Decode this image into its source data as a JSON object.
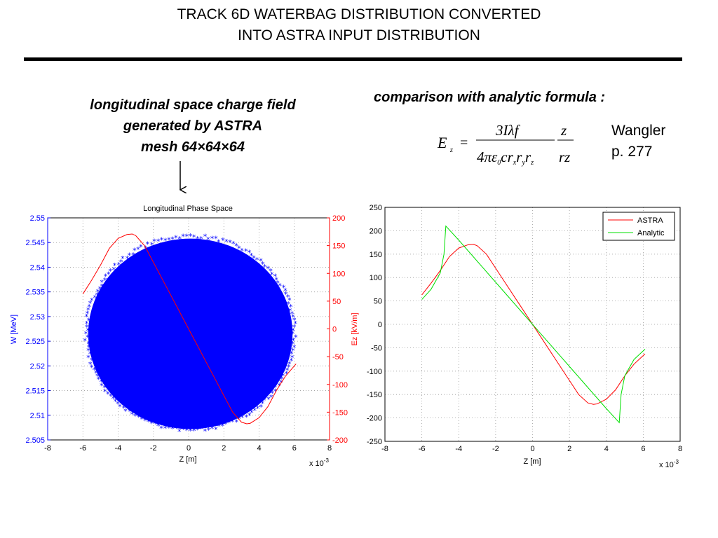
{
  "header": {
    "title_line_1": "TRACK 6D WATERBAG DISTRIBUTION CONVERTED",
    "title_line_2": "INTO ASTRA INPUT DISTRIBUTION"
  },
  "left_caption": {
    "line_1": "longitudinal space charge field",
    "line_2": "generated by ASTRA",
    "line_3": "mesh 64×64×64"
  },
  "right_caption": {
    "comparison": "comparison with analytic formula :",
    "reference_line_1": "Wangler",
    "reference_line_2": "p. 277"
  },
  "formula": {
    "lhs": "E",
    "lhs_sub": "z",
    "numerator": "3Iλf",
    "denominator": "4πε",
    "denominator_sub0": "0",
    "denominator_rest": "cr",
    "sub_x": "x",
    "sub_y": "y",
    "sub_z": "z",
    "frac2_num": "z",
    "frac2_den": "rz"
  },
  "colors": {
    "blue": "#0000ff",
    "red": "#ff0000",
    "green": "#00e000",
    "grid": "#9a9a9a"
  },
  "chart_data": [
    {
      "type": "scatter",
      "title": "Longitudinal Phase Space",
      "xlabel": "Z [m]",
      "x_multiplier": "x 10",
      "x_exponent": "-3",
      "xlim": [
        -8,
        8
      ],
      "xticks": [
        -8,
        -6,
        -4,
        -2,
        0,
        2,
        4,
        6,
        8
      ],
      "ylabel": "W [MeV]",
      "ylim": [
        2.505,
        2.55
      ],
      "yticks": [
        "2.505",
        "2.51",
        "2.515",
        "2.52",
        "2.525",
        "2.53",
        "2.535",
        "2.54",
        "2.545",
        "2.55"
      ],
      "y2label": "Ez [kV/m]",
      "y2lim": [
        -200,
        200
      ],
      "y2ticks": [
        -200,
        -150,
        -100,
        -50,
        0,
        50,
        100,
        150,
        200
      ],
      "grid": true,
      "scatter_region": {
        "center_z": 0.1,
        "center_w": 2.5265,
        "half_width_z": 5.8,
        "half_height_w": 0.0193
      },
      "series": [
        {
          "axis": "right",
          "color": "#ff0000",
          "x": [
            -6.0,
            -5.5,
            -5.0,
            -4.5,
            -4.0,
            -3.5,
            -3.2,
            -3.0,
            -2.5,
            -2.0,
            -1.5,
            -1.0,
            -0.5,
            0.0,
            0.5,
            1.0,
            1.5,
            2.0,
            2.5,
            3.0,
            3.3,
            3.5,
            4.0,
            4.5,
            5.0,
            5.5,
            6.1
          ],
          "y": [
            63,
            88,
            115,
            145,
            163,
            170,
            171,
            168,
            150,
            120,
            90,
            60,
            30,
            0,
            -30,
            -60,
            -90,
            -120,
            -150,
            -168,
            -171,
            -170,
            -160,
            -140,
            -110,
            -85,
            -63
          ]
        }
      ]
    },
    {
      "type": "line",
      "title": "",
      "xlabel": "Z [m]",
      "x_multiplier": "x 10",
      "x_exponent": "-3",
      "xlim": [
        -8,
        8
      ],
      "xticks": [
        -8,
        -6,
        -4,
        -2,
        0,
        2,
        4,
        6,
        8
      ],
      "ylabel": "",
      "ylim": [
        -250,
        250
      ],
      "yticks": [
        -250,
        -200,
        -150,
        -100,
        -50,
        0,
        50,
        100,
        150,
        200,
        250
      ],
      "grid": true,
      "legend": "top-right",
      "series": [
        {
          "name": "ASTRA",
          "color": "#ff0000",
          "x": [
            -6.0,
            -5.5,
            -5.0,
            -4.5,
            -4.0,
            -3.5,
            -3.2,
            -3.0,
            -2.5,
            -2.0,
            -1.5,
            -1.0,
            -0.5,
            0.0,
            0.5,
            1.0,
            1.5,
            2.0,
            2.5,
            3.0,
            3.3,
            3.5,
            4.0,
            4.5,
            5.0,
            5.5,
            6.1
          ],
          "y": [
            63,
            88,
            115,
            145,
            163,
            170,
            171,
            168,
            150,
            120,
            90,
            60,
            30,
            0,
            -30,
            -60,
            -90,
            -120,
            -150,
            -168,
            -171,
            -170,
            -160,
            -140,
            -110,
            -85,
            -63
          ]
        },
        {
          "name": "Analytic",
          "color": "#00e000",
          "x": [
            -6.0,
            -5.5,
            -5.0,
            -4.8,
            -4.7,
            -4.0,
            -2.0,
            0.0,
            2.0,
            4.0,
            4.7,
            4.8,
            5.0,
            5.5,
            6.1
          ],
          "y": [
            53,
            75,
            110,
            150,
            210,
            180,
            90,
            0,
            -90,
            -180,
            -210,
            -150,
            -110,
            -75,
            -53
          ]
        }
      ]
    }
  ]
}
